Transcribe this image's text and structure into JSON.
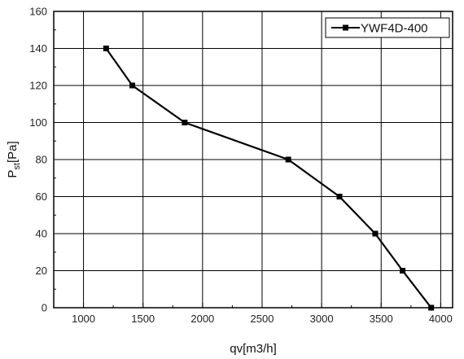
{
  "chart_data": {
    "type": "line",
    "title": "",
    "xlabel": "qv[m3/h]",
    "ylabel_main": "P",
    "ylabel_sub": "st",
    "ylabel_unit": "[Pa]",
    "xlim": [
      750,
      4100
    ],
    "ylim": [
      0,
      160
    ],
    "x_ticks": [
      1000,
      1500,
      2000,
      2500,
      3000,
      3500,
      4000
    ],
    "y_ticks": [
      0,
      20,
      40,
      60,
      80,
      100,
      120,
      140,
      160
    ],
    "grid": true,
    "legend_position": "top-right",
    "series": [
      {
        "name": "YWF4D-400",
        "color": "#000000",
        "marker": "square",
        "points": [
          {
            "x": 1190,
            "y": 140
          },
          {
            "x": 1410,
            "y": 120
          },
          {
            "x": 1850,
            "y": 100
          },
          {
            "x": 2720,
            "y": 80
          },
          {
            "x": 3150,
            "y": 60
          },
          {
            "x": 3450,
            "y": 40
          },
          {
            "x": 3680,
            "y": 20
          },
          {
            "x": 3920,
            "y": 0
          }
        ]
      }
    ]
  }
}
